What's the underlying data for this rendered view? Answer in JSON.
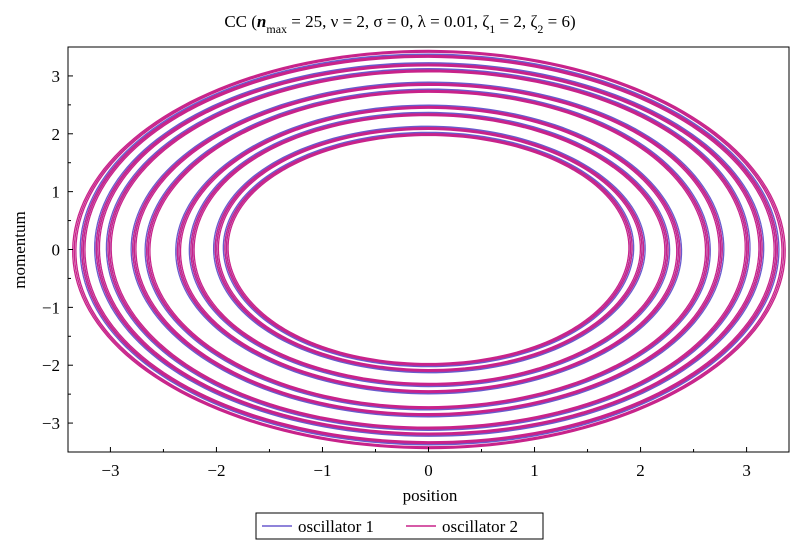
{
  "chart_data": {
    "type": "line",
    "title": {
      "prefix": "CC  (",
      "n": "n",
      "n_sub": "max",
      "rest1": " = 25, ν = 2, σ = 0, λ = 0.01, ζ",
      "zeta1_sub": "1",
      "rest2": " = 2, ζ",
      "zeta2_sub": "2",
      "rest3": " = 6)"
    },
    "xlabel": "position",
    "ylabel": "momentum",
    "xlim": [
      -3.4,
      3.4
    ],
    "ylim": [
      -3.5,
      3.5
    ],
    "x_ticks": [
      {
        "value": -3,
        "label": "−3"
      },
      {
        "value": -2,
        "label": "−2"
      },
      {
        "value": -1,
        "label": "−1"
      },
      {
        "value": 0,
        "label": "0"
      },
      {
        "value": 1,
        "label": "1"
      },
      {
        "value": 2,
        "label": "2"
      },
      {
        "value": 3,
        "label": "3"
      }
    ],
    "y_ticks": [
      {
        "value": 3,
        "label": "3"
      },
      {
        "value": 2,
        "label": "2"
      },
      {
        "value": 1,
        "label": "1"
      },
      {
        "value": 0,
        "label": "0"
      },
      {
        "value": -1,
        "label": "−1"
      },
      {
        "value": -2,
        "label": "−2"
      },
      {
        "value": -3,
        "label": "−3"
      }
    ],
    "grid": false,
    "legend_position": "bottom",
    "series": [
      {
        "name": "oscillator 1",
        "color": "#6a5acd",
        "description": "concentric elliptical orbits in phase space",
        "orbits": [
          {
            "x_amp": 1.92,
            "p_amp": 2.02
          },
          {
            "x_amp": 2.02,
            "p_amp": 2.12
          },
          {
            "x_amp": 2.25,
            "p_amp": 2.35
          },
          {
            "x_amp": 2.37,
            "p_amp": 2.47
          },
          {
            "x_amp": 2.65,
            "p_amp": 2.75
          },
          {
            "x_amp": 2.78,
            "p_amp": 2.88
          },
          {
            "x_amp": 3.02,
            "p_amp": 3.12
          },
          {
            "x_amp": 3.14,
            "p_amp": 3.22
          },
          {
            "x_amp": 3.28,
            "p_amp": 3.36
          }
        ]
      },
      {
        "name": "oscillator 2",
        "color": "#c8238a",
        "description": "concentric elliptical orbits in phase space",
        "orbits": [
          {
            "x_amp": 1.9,
            "p_amp": 2.0
          },
          {
            "x_amp": 2.0,
            "p_amp": 2.1
          },
          {
            "x_amp": 2.23,
            "p_amp": 2.33
          },
          {
            "x_amp": 2.35,
            "p_amp": 2.45
          },
          {
            "x_amp": 2.63,
            "p_amp": 2.73
          },
          {
            "x_amp": 2.76,
            "p_amp": 2.86
          },
          {
            "x_amp": 3.0,
            "p_amp": 3.1
          },
          {
            "x_amp": 3.12,
            "p_amp": 3.2
          },
          {
            "x_amp": 3.26,
            "p_amp": 3.34
          },
          {
            "x_amp": 3.34,
            "p_amp": 3.42
          }
        ]
      }
    ]
  }
}
